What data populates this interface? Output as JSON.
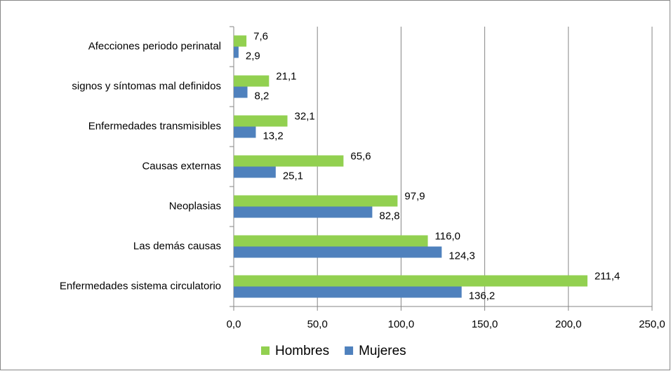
{
  "chart_data": {
    "type": "barh",
    "categories": [
      "Afecciones periodo perinatal",
      "signos y síntomas mal definidos",
      "Enfermedades transmisibles",
      "Causas externas",
      "Neoplasias",
      "Las demás causas",
      "Enfermedades sistema circulatorio"
    ],
    "series": [
      {
        "name": "Hombres",
        "color": "#92d050",
        "values": [
          7.6,
          21.1,
          32.1,
          65.6,
          97.9,
          116.0,
          211.4
        ],
        "value_labels": [
          "7,6",
          "21,1",
          "32,1",
          "65,6",
          "97,9",
          "116,0",
          "211,4"
        ]
      },
      {
        "name": "Mujeres",
        "color": "#4f81bd",
        "values": [
          2.9,
          8.2,
          13.2,
          25.1,
          82.8,
          124.3,
          136.2
        ],
        "value_labels": [
          "2,9",
          "8,2",
          "13,2",
          "25,1",
          "82,8",
          "124,3",
          "136,2"
        ]
      }
    ],
    "xlim": [
      0,
      250
    ],
    "xticks": [
      {
        "value": 0,
        "label": "0,0"
      },
      {
        "value": 50,
        "label": "50,0"
      },
      {
        "value": 100,
        "label": "100,0"
      },
      {
        "value": 150,
        "label": "150,0"
      },
      {
        "value": 200,
        "label": "200,0"
      },
      {
        "value": 250,
        "label": "250,0"
      }
    ],
    "grid": true,
    "legend": "bottom"
  }
}
